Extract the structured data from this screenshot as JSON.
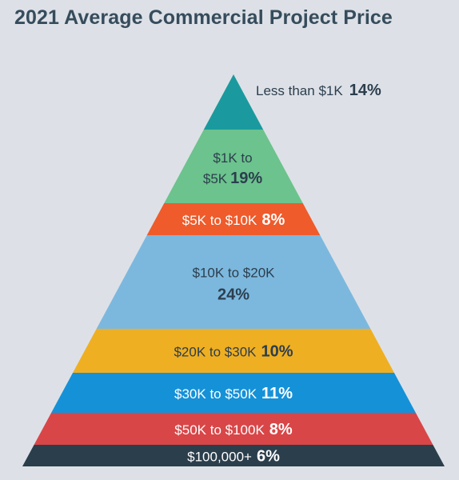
{
  "page": {
    "title": "2021 Average Commercial Project Price",
    "background_color": "#dde1e7",
    "title_color": "#364c5c"
  },
  "chart_data": {
    "type": "pyramid",
    "title": "2021 Average Commercial Project Price",
    "unit": "%",
    "segments": [
      {
        "category": "Less than $1K",
        "value": 14,
        "value_label": "14%",
        "color": "#1a9a9e",
        "text_color": "#2c3e4e",
        "label_outside": true
      },
      {
        "category": "$1K to $5K",
        "value": 19,
        "value_label": "19%",
        "color": "#6cc38d",
        "text_color": "#2c3e4e",
        "lines": [
          "$1K to",
          "$5K"
        ]
      },
      {
        "category": "$5K to $10K",
        "value": 8,
        "value_label": "8%",
        "color": "#ef5b2b",
        "text_color": "#ffffff"
      },
      {
        "category": "$10K to $20K",
        "value": 24,
        "value_label": "24%",
        "color": "#7cb8de",
        "text_color": "#2c3e4e",
        "value_on_new_line": true
      },
      {
        "category": "$20K to $30K",
        "value": 10,
        "value_label": "10%",
        "color": "#efaf22",
        "text_color": "#2c3e4e"
      },
      {
        "category": "$30K to $50K",
        "value": 11,
        "value_label": "11%",
        "color": "#1591d8",
        "text_color": "#ffffff"
      },
      {
        "category": "$50K to $100K",
        "value": 8,
        "value_label": "8%",
        "color": "#d94648",
        "text_color": "#ffffff"
      },
      {
        "category": "$100,000+",
        "value": 6,
        "value_label": "6%",
        "color": "#2b3e4c",
        "text_color": "#ffffff"
      }
    ]
  }
}
